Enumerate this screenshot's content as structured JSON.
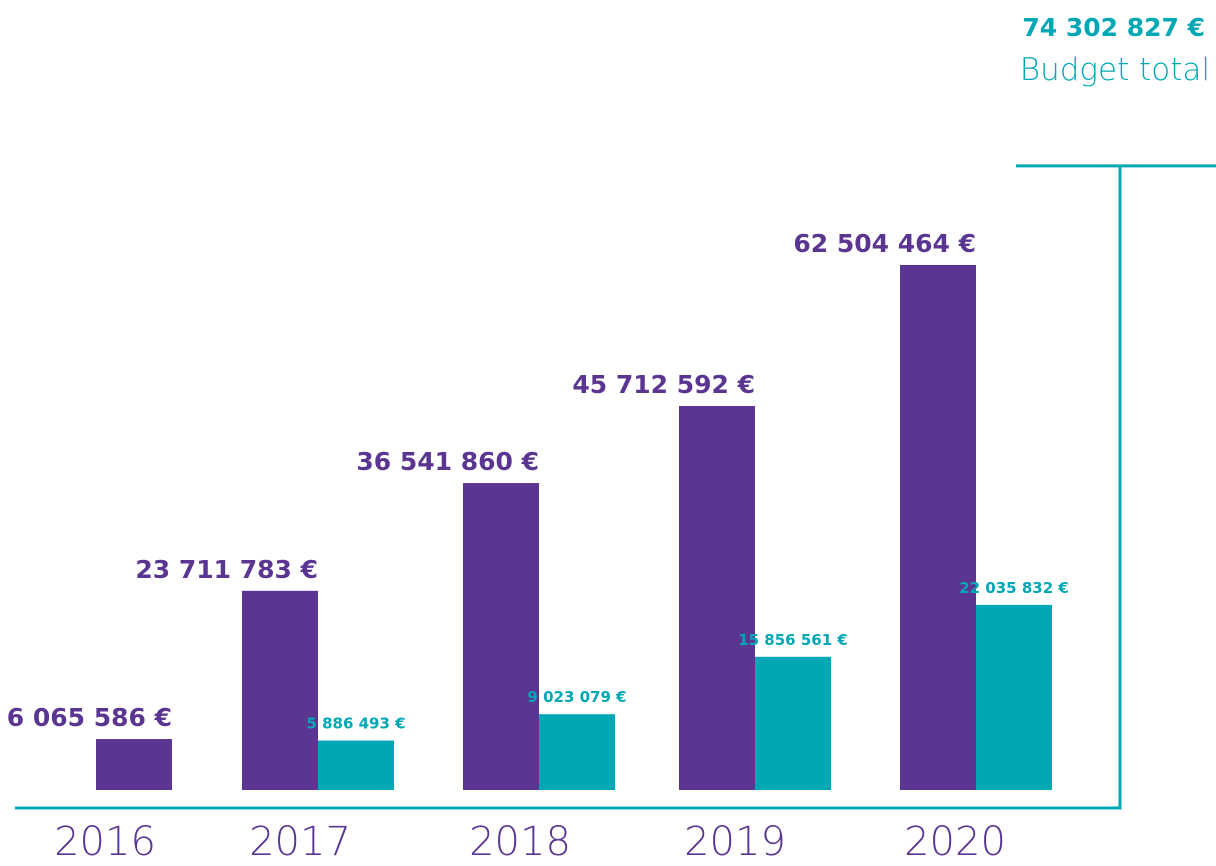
{
  "chart_data": {
    "type": "bar",
    "categories": [
      "2016",
      "2017",
      "2018",
      "2019",
      "2020"
    ],
    "series": [
      {
        "color": "#5b3592",
        "values": [
          6065586,
          23711783,
          36541860,
          45712592,
          62504464
        ],
        "value_labels": [
          "6 065 586 €",
          "23 711 783 €",
          "36 541 860 €",
          "45 712 592 €",
          "62 504 464 €"
        ]
      },
      {
        "color": "#00a8b5",
        "values": [
          null,
          5886493,
          9023079,
          15856561,
          22035832
        ],
        "value_labels": [
          null,
          "5 886 493 €",
          "9 023 079 €",
          "15 856 561 €",
          "22 035 832 €"
        ]
      }
    ],
    "total": {
      "value": 74302827,
      "label": "74 302 827 €",
      "text": "Budget total"
    },
    "ylim": [
      0,
      80000000
    ]
  }
}
